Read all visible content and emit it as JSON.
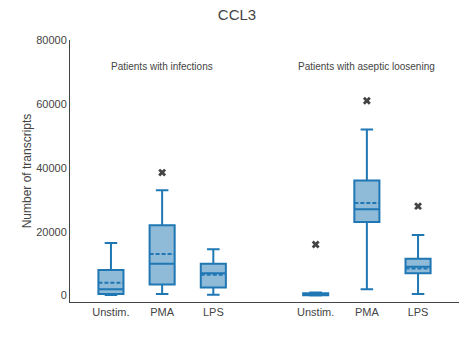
{
  "chart_data": {
    "type": "box",
    "title": "CCL3",
    "ylabel": "Number of transcripts",
    "categories": [
      "Unstim.",
      "PMA",
      "LPS",
      "Unstim.",
      "PMA",
      "LPS"
    ],
    "annotations": [
      "Patients with infections",
      "Patients with aseptic loosening"
    ],
    "q1": [
      500,
      3500,
      2500,
      100,
      23000,
      7000
    ],
    "median": [
      2000,
      10000,
      7000,
      300,
      27000,
      9000
    ],
    "q3": [
      8000,
      22000,
      10000,
      700,
      36000,
      11500
    ],
    "whislo": [
      200,
      500,
      300,
      50,
      2000,
      500
    ],
    "whishi": [
      16500,
      33000,
      14500,
      1000,
      52000,
      19000
    ],
    "mean": [
      4000,
      13000,
      6500,
      350,
      29000,
      8500
    ],
    "fliers": [
      [],
      [
        38500
      ],
      [],
      [
        16000
      ],
      [
        61000
      ],
      [
        28000
      ]
    ],
    "marker": "x",
    "ylim": [
      -2000,
      80000
    ],
    "yticks": [
      0,
      20000,
      40000,
      60000,
      80000
    ],
    "grid": false
  }
}
